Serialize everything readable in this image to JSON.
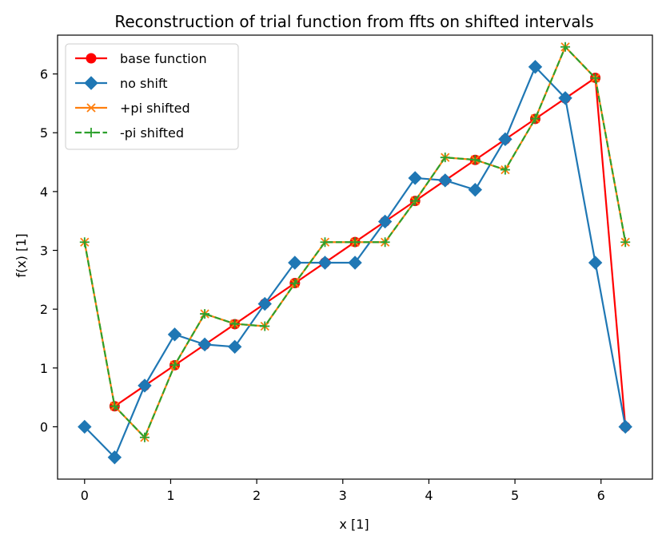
{
  "chart_data": {
    "type": "line",
    "title": "Reconstruction of trial function from ffts on shifted intervals",
    "xlabel": "x [1]",
    "ylabel": "f(x) [1]",
    "xlim": [
      -0.314,
      6.597
    ],
    "ylim": [
      -0.89,
      6.66
    ],
    "xticks": [
      0,
      1,
      2,
      3,
      4,
      5,
      6
    ],
    "yticks": [
      0,
      1,
      2,
      3,
      4,
      5,
      6
    ],
    "grid": false,
    "legend_position": "top-left",
    "series": [
      {
        "name": "base function",
        "color": "#ff0000",
        "marker": "circle",
        "linestyle": "solid",
        "x": [
          0.349,
          0.698,
          1.047,
          1.396,
          1.745,
          2.094,
          2.443,
          2.793,
          3.142,
          3.491,
          3.84,
          4.189,
          4.538,
          4.887,
          5.236,
          5.585,
          5.934,
          6.283
        ],
        "y": [
          0.349,
          0.698,
          1.047,
          1.396,
          1.745,
          2.094,
          2.443,
          2.793,
          3.142,
          3.491,
          3.84,
          4.189,
          4.538,
          4.887,
          5.236,
          5.585,
          5.934,
          0.0
        ]
      },
      {
        "name": "no shift",
        "color": "#1f77b4",
        "marker": "diamond",
        "linestyle": "solid",
        "x": [
          0.0,
          0.349,
          0.698,
          1.047,
          1.396,
          1.745,
          2.094,
          2.443,
          2.793,
          3.142,
          3.491,
          3.84,
          4.189,
          4.538,
          4.887,
          5.236,
          5.585,
          5.934,
          6.283
        ],
        "y": [
          0.0,
          -0.52,
          0.7,
          1.57,
          1.4,
          1.36,
          2.09,
          2.79,
          2.79,
          2.79,
          3.49,
          4.23,
          4.19,
          4.03,
          4.89,
          6.12,
          5.59,
          2.79,
          0.0
        ]
      },
      {
        "name": "+pi shifted",
        "color": "#ff7f0e",
        "marker": "x",
        "linestyle": "solid",
        "x": [
          0.0,
          0.349,
          0.698,
          1.047,
          1.396,
          1.745,
          2.094,
          2.443,
          2.793,
          3.142,
          3.491,
          3.84,
          4.189,
          4.538,
          4.887,
          5.236,
          5.585,
          5.934,
          6.283
        ],
        "y": [
          3.14,
          0.35,
          -0.18,
          1.05,
          1.92,
          1.75,
          1.71,
          2.44,
          3.14,
          3.14,
          3.14,
          3.84,
          4.58,
          4.54,
          4.37,
          5.24,
          6.46,
          5.93,
          3.14
        ]
      },
      {
        "name": "-pi shifted",
        "color": "#2ca02c",
        "marker": "plus",
        "linestyle": "dashed",
        "x": [
          0.0,
          0.349,
          0.698,
          1.047,
          1.396,
          1.745,
          2.094,
          2.443,
          2.793,
          3.142,
          3.491,
          3.84,
          4.189,
          4.538,
          4.887,
          5.236,
          5.585,
          5.934,
          6.283
        ],
        "y": [
          3.14,
          0.35,
          -0.18,
          1.05,
          1.92,
          1.75,
          1.71,
          2.44,
          3.14,
          3.14,
          3.14,
          3.84,
          4.58,
          4.54,
          4.37,
          5.24,
          6.46,
          5.93,
          3.14
        ]
      }
    ]
  }
}
